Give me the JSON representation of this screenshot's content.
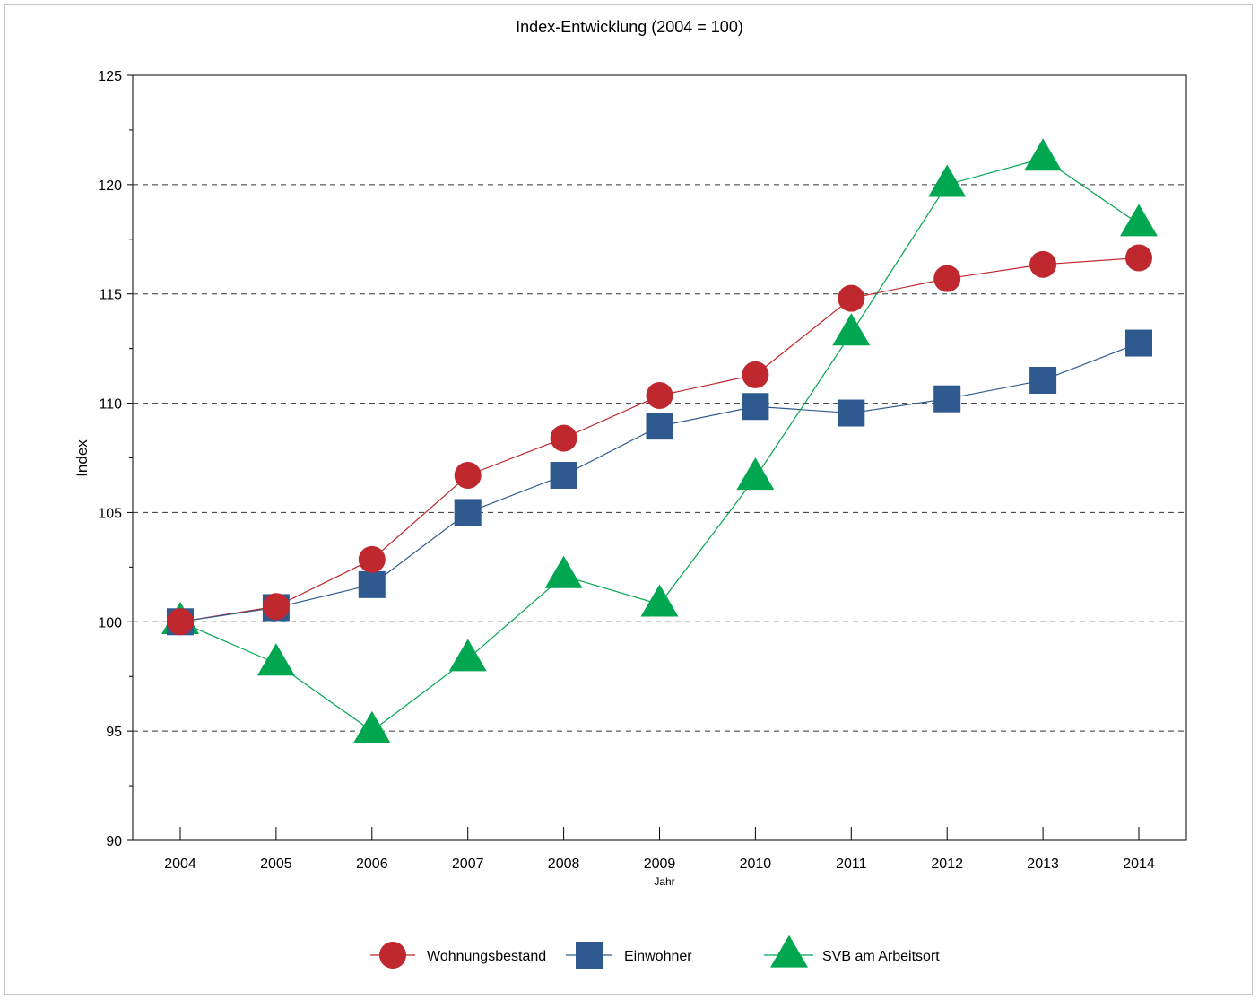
{
  "chart_data": {
    "type": "line",
    "title": "Index-Entwicklung (2004 = 100)",
    "xlabel": "Jahr",
    "ylabel": "Index",
    "x": [
      "2004",
      "2005",
      "2006",
      "2007",
      "2008",
      "2009",
      "2010",
      "2011",
      "2012",
      "2013",
      "2014"
    ],
    "ylim": [
      90,
      125
    ],
    "yticks": [
      90,
      95,
      100,
      105,
      110,
      115,
      120,
      125
    ],
    "grid": "dashed horizontal at major ticks",
    "legend_position": "bottom",
    "series": [
      {
        "name": "Wohnungsbestand",
        "marker": "circle",
        "color": "#c0282f",
        "values": [
          100.0,
          100.7,
          102.85,
          106.7,
          108.4,
          110.35,
          111.3,
          114.8,
          115.7,
          116.35,
          116.65
        ]
      },
      {
        "name": "Einwohner",
        "marker": "square",
        "color": "#2f5a90",
        "values": [
          100.0,
          100.65,
          101.7,
          105.0,
          106.7,
          108.95,
          109.85,
          109.55,
          110.2,
          111.05,
          112.75
        ]
      },
      {
        "name": "SVB am Arbeitsort",
        "marker": "triangle",
        "color": "#00a650",
        "values": [
          100.0,
          98.1,
          95.0,
          98.3,
          102.1,
          100.8,
          106.6,
          113.2,
          120.0,
          121.2,
          118.2
        ]
      }
    ]
  }
}
